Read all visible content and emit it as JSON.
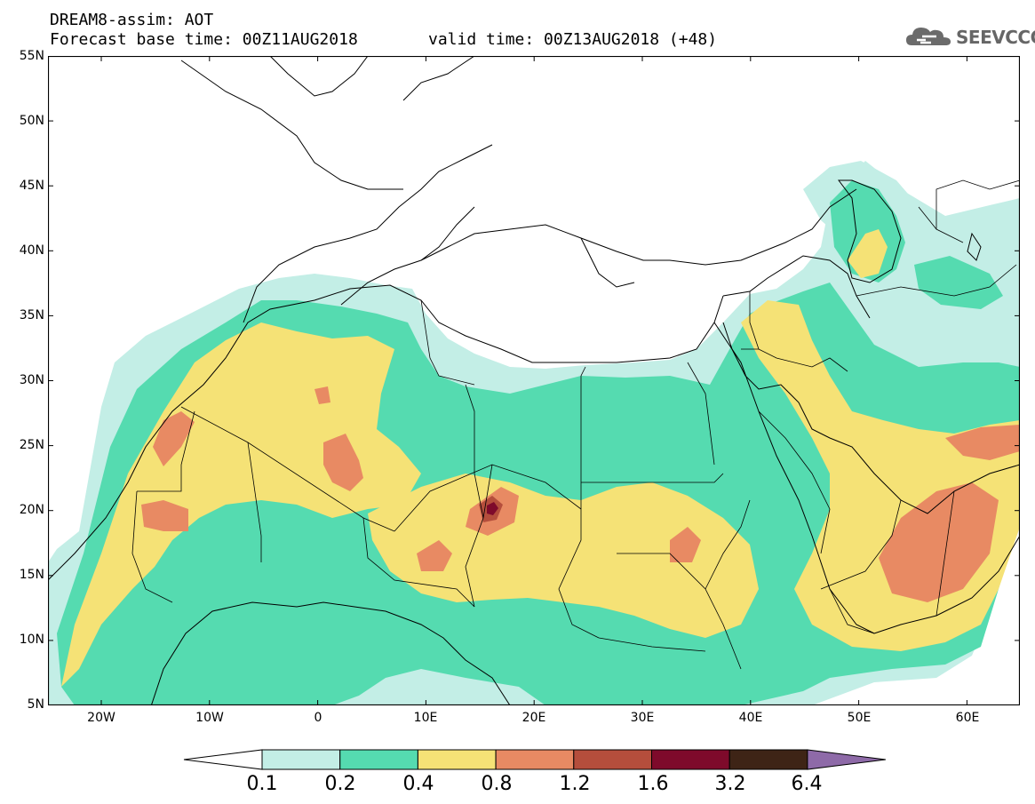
{
  "header": {
    "line1": "DREAM8-assim: AOT",
    "line2a": "Forecast base time: 00Z11AUG2018",
    "line2b": "valid time: 00Z13AUG2018 (+48)",
    "logo_text": "SEEVCCC",
    "logo_icon": "cloud-icon"
  },
  "axes": {
    "lat_labels": [
      "55N",
      "50N",
      "45N",
      "40N",
      "35N",
      "30N",
      "25N",
      "20N",
      "15N",
      "10N",
      "5N"
    ],
    "lon_labels": [
      "20W",
      "10W",
      "0",
      "10E",
      "20E",
      "30E",
      "40E",
      "50E",
      "60E"
    ]
  },
  "colorbar": {
    "labels": [
      "0.1",
      "0.2",
      "0.4",
      "0.8",
      "1.2",
      "1.6",
      "3.2",
      "6.4"
    ],
    "colors": {
      "below": "#ffffff",
      "c1": "#c3eee6",
      "c2": "#55dbb0",
      "c3": "#f5e276",
      "c4": "#e88a63",
      "c5": "#b54e3c",
      "c6": "#7e0a2b",
      "c7": "#3e2416",
      "above": "#8e6aa8"
    }
  }
}
